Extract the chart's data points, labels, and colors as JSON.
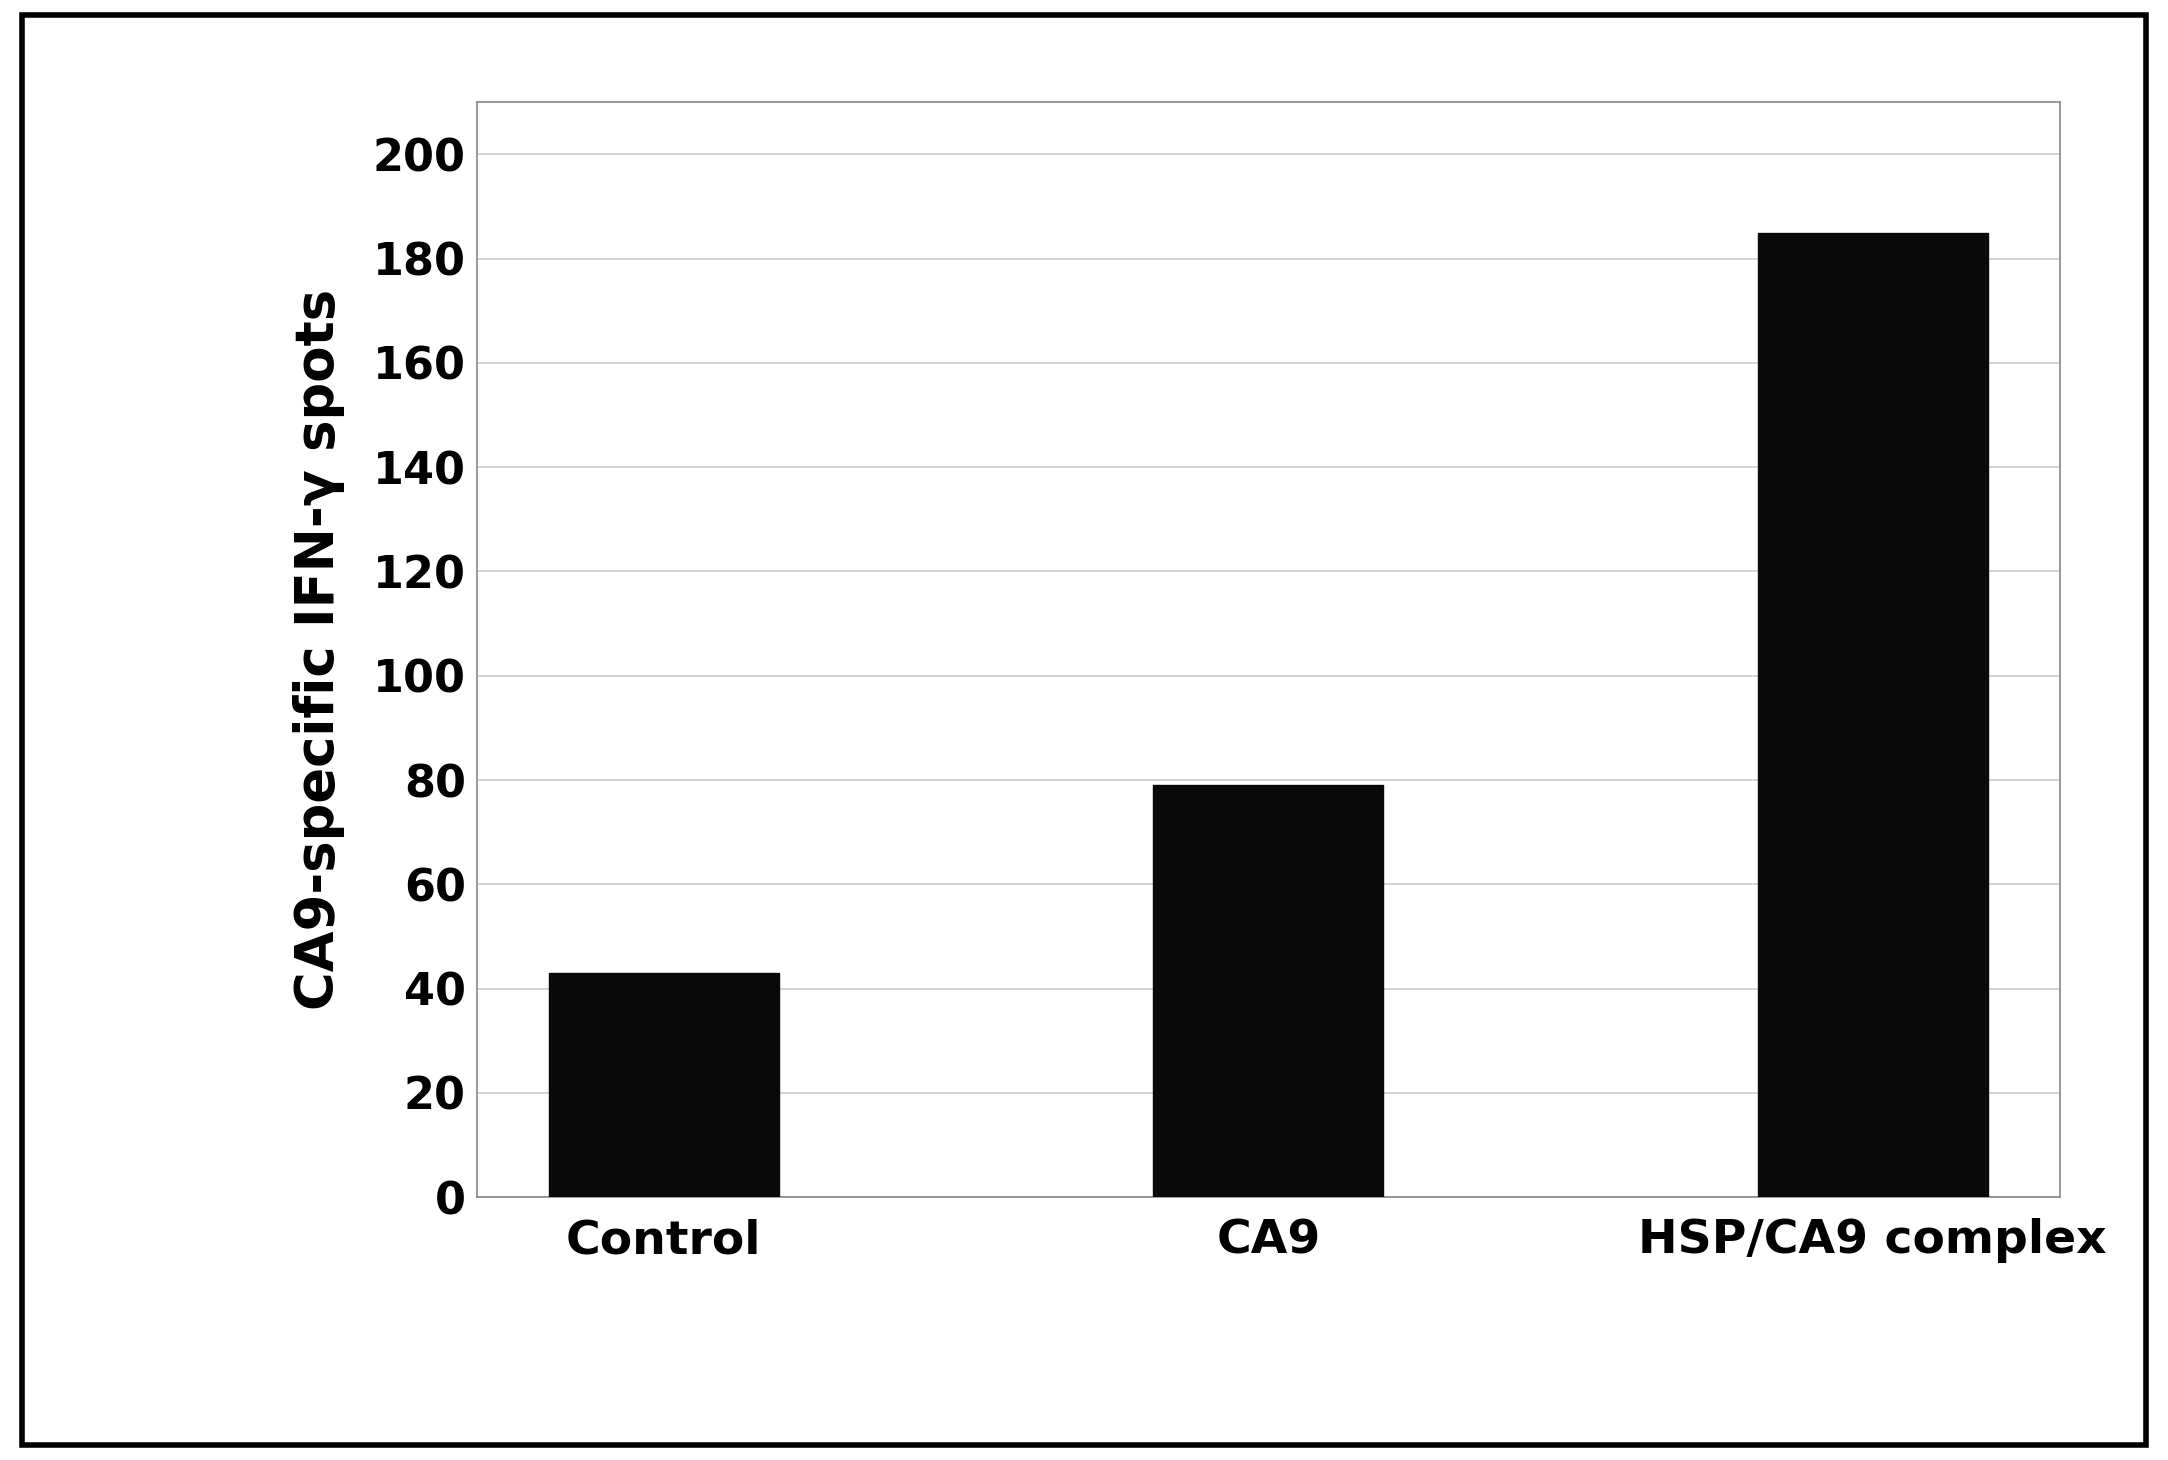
{
  "categories": [
    "Control",
    "CA9",
    "HSP/CA9 complex"
  ],
  "values": [
    43,
    79,
    185
  ],
  "bar_color": "#0a0a0a",
  "bar_width": 0.38,
  "ylabel": "CA9-specific IFN-γ spots",
  "ylim": [
    0,
    210
  ],
  "yticks": [
    0,
    20,
    40,
    60,
    80,
    100,
    120,
    140,
    160,
    180,
    200
  ],
  "background_color": "#ffffff",
  "figure_background": "#ffffff",
  "grid_color": "#cccccc",
  "ylabel_fontsize": 38,
  "tick_fontsize": 32,
  "xlabel_fontsize": 34,
  "outer_border_color": "#000000",
  "outer_border_lw": 4
}
